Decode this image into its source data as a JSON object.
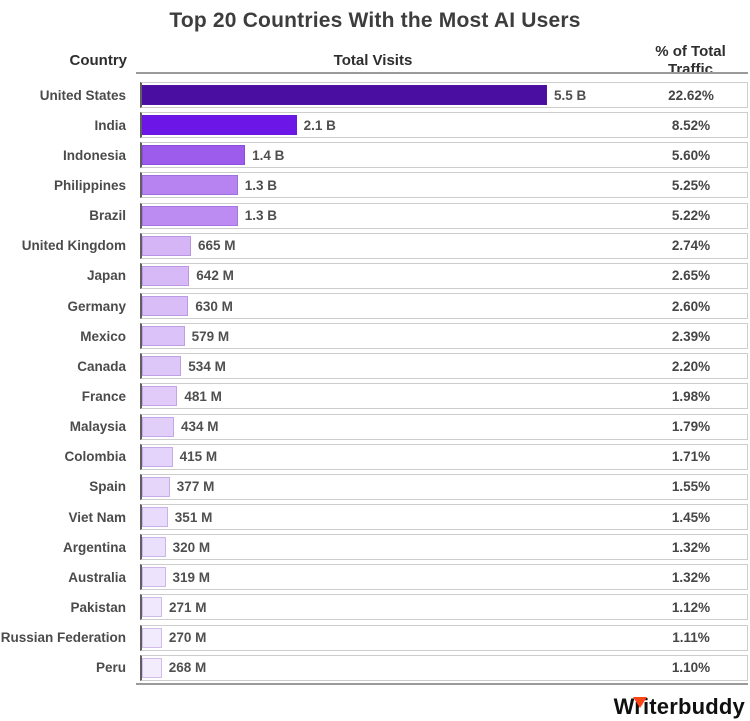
{
  "title": "Top 20 Countries With the Most AI Users",
  "columns": {
    "country": "Country",
    "visits": "Total Visits",
    "percent_line1": "% of Total",
    "percent_line2": "Traffic"
  },
  "footer": {
    "logo_text": "Writerbuddy",
    "logo_icon": "pen-nib-triangle-icon",
    "logo_accent_color": "#fb4516"
  },
  "chart_data": {
    "type": "bar",
    "orientation": "horizontal",
    "title": "Top 20 Countries With the Most AI Users",
    "xlabel": "Total Visits",
    "ylabel": "Country",
    "grid": false,
    "legend": false,
    "xmax_millions": 5500,
    "categories": [
      "United States",
      "India",
      "Indonesia",
      "Philippines",
      "Brazil",
      "United Kingdom",
      "Japan",
      "Germany",
      "Mexico",
      "Canada",
      "France",
      "Malaysia",
      "Colombia",
      "Spain",
      "Viet Nam",
      "Argentina",
      "Australia",
      "Pakistan",
      "Russian Federation",
      "Peru"
    ],
    "series": [
      {
        "name": "Total Visits (millions)",
        "values": [
          5500,
          2100,
          1400,
          1300,
          1300,
          665,
          642,
          630,
          579,
          534,
          481,
          434,
          415,
          377,
          351,
          320,
          319,
          271,
          270,
          268
        ]
      },
      {
        "name": "% of Total Traffic",
        "values": [
          22.62,
          8.52,
          5.6,
          5.25,
          5.22,
          2.74,
          2.65,
          2.6,
          2.39,
          2.2,
          1.98,
          1.79,
          1.71,
          1.55,
          1.45,
          1.32,
          1.32,
          1.12,
          1.11,
          1.1
        ]
      }
    ],
    "value_labels": [
      "5.5 B",
      "2.1 B",
      "1.4 B",
      "1.3 B",
      "1.3 B",
      "665 M",
      "642 M",
      "630 M",
      "579 M",
      "534 M",
      "481 M",
      "434 M",
      "415 M",
      "377 M",
      "351 M",
      "320 M",
      "319 M",
      "271 M",
      "270 M",
      "268 M"
    ],
    "percent_labels": [
      "22.62%",
      "8.52%",
      "5.60%",
      "5.25%",
      "5.22%",
      "2.74%",
      "2.65%",
      "2.60%",
      "2.39%",
      "2.20%",
      "1.98%",
      "1.79%",
      "1.71%",
      "1.55%",
      "1.45%",
      "1.32%",
      "1.32%",
      "1.12%",
      "1.11%",
      "1.10%"
    ],
    "bar_colors": [
      "#4a0fa0",
      "#6c17e8",
      "#9d5cec",
      "#b783f1",
      "#bd8cf2",
      "#d5b5f6",
      "#d7b9f7",
      "#d9bdf7",
      "#dbc2f8",
      "#ddc6f8",
      "#e0cbf9",
      "#e2cff9",
      "#e4d3fa",
      "#e6d7fa",
      "#e8dbfb",
      "#ebe0fb",
      "#ede3fc",
      "#f0e8fc",
      "#f2eafd",
      "#f3ecfd"
    ]
  }
}
